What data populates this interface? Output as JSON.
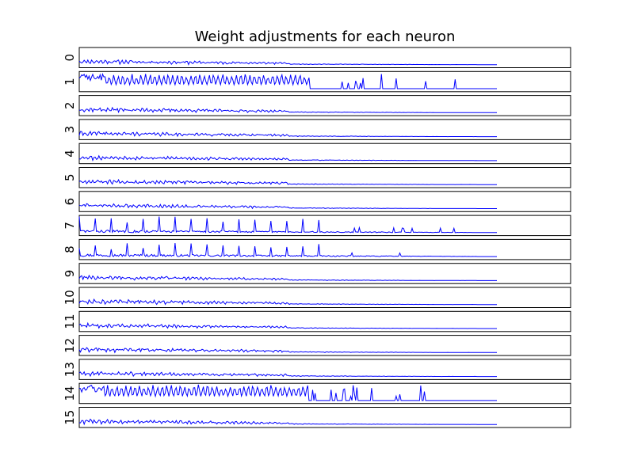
{
  "chart_data": {
    "type": "line",
    "title": "Weight adjustments for each neuron",
    "xlabel": "",
    "ylabel": "",
    "grid": false,
    "line_color": "#0000ff",
    "frame_color": "#000000",
    "background": "#ffffff",
    "x_range": [
      0,
      1000
    ],
    "y_range": [
      0,
      1
    ],
    "x_end": 850,
    "series": [
      {
        "name": "0",
        "label": "0",
        "pattern": "low",
        "amplitude": 0.3,
        "seed": 11
      },
      {
        "name": "1",
        "label": "1",
        "pattern": "spiky",
        "amplitude": 0.85,
        "seed": 23
      },
      {
        "name": "2",
        "label": "2",
        "pattern": "low",
        "amplitude": 0.3,
        "seed": 37
      },
      {
        "name": "3",
        "label": "3",
        "pattern": "low",
        "amplitude": 0.3,
        "seed": 41
      },
      {
        "name": "4",
        "label": "4",
        "pattern": "low",
        "amplitude": 0.3,
        "seed": 53
      },
      {
        "name": "5",
        "label": "5",
        "pattern": "low",
        "amplitude": 0.3,
        "seed": 67
      },
      {
        "name": "6",
        "label": "6",
        "pattern": "low",
        "amplitude": 0.3,
        "seed": 71
      },
      {
        "name": "7",
        "label": "7",
        "pattern": "peaks",
        "amplitude": 0.9,
        "seed": 83
      },
      {
        "name": "8",
        "label": "8",
        "pattern": "peaks",
        "amplitude": 0.65,
        "seed": 97
      },
      {
        "name": "9",
        "label": "9",
        "pattern": "low",
        "amplitude": 0.3,
        "seed": 101
      },
      {
        "name": "10",
        "label": "10",
        "pattern": "low",
        "amplitude": 0.3,
        "seed": 113
      },
      {
        "name": "11",
        "label": "11",
        "pattern": "low",
        "amplitude": 0.3,
        "seed": 127
      },
      {
        "name": "12",
        "label": "12",
        "pattern": "low",
        "amplitude": 0.3,
        "seed": 131
      },
      {
        "name": "13",
        "label": "13",
        "pattern": "low",
        "amplitude": 0.3,
        "seed": 149
      },
      {
        "name": "14",
        "label": "14",
        "pattern": "spiky",
        "amplitude": 0.9,
        "seed": 157
      },
      {
        "name": "15",
        "label": "15",
        "pattern": "low",
        "amplitude": 0.3,
        "seed": 163
      }
    ]
  }
}
